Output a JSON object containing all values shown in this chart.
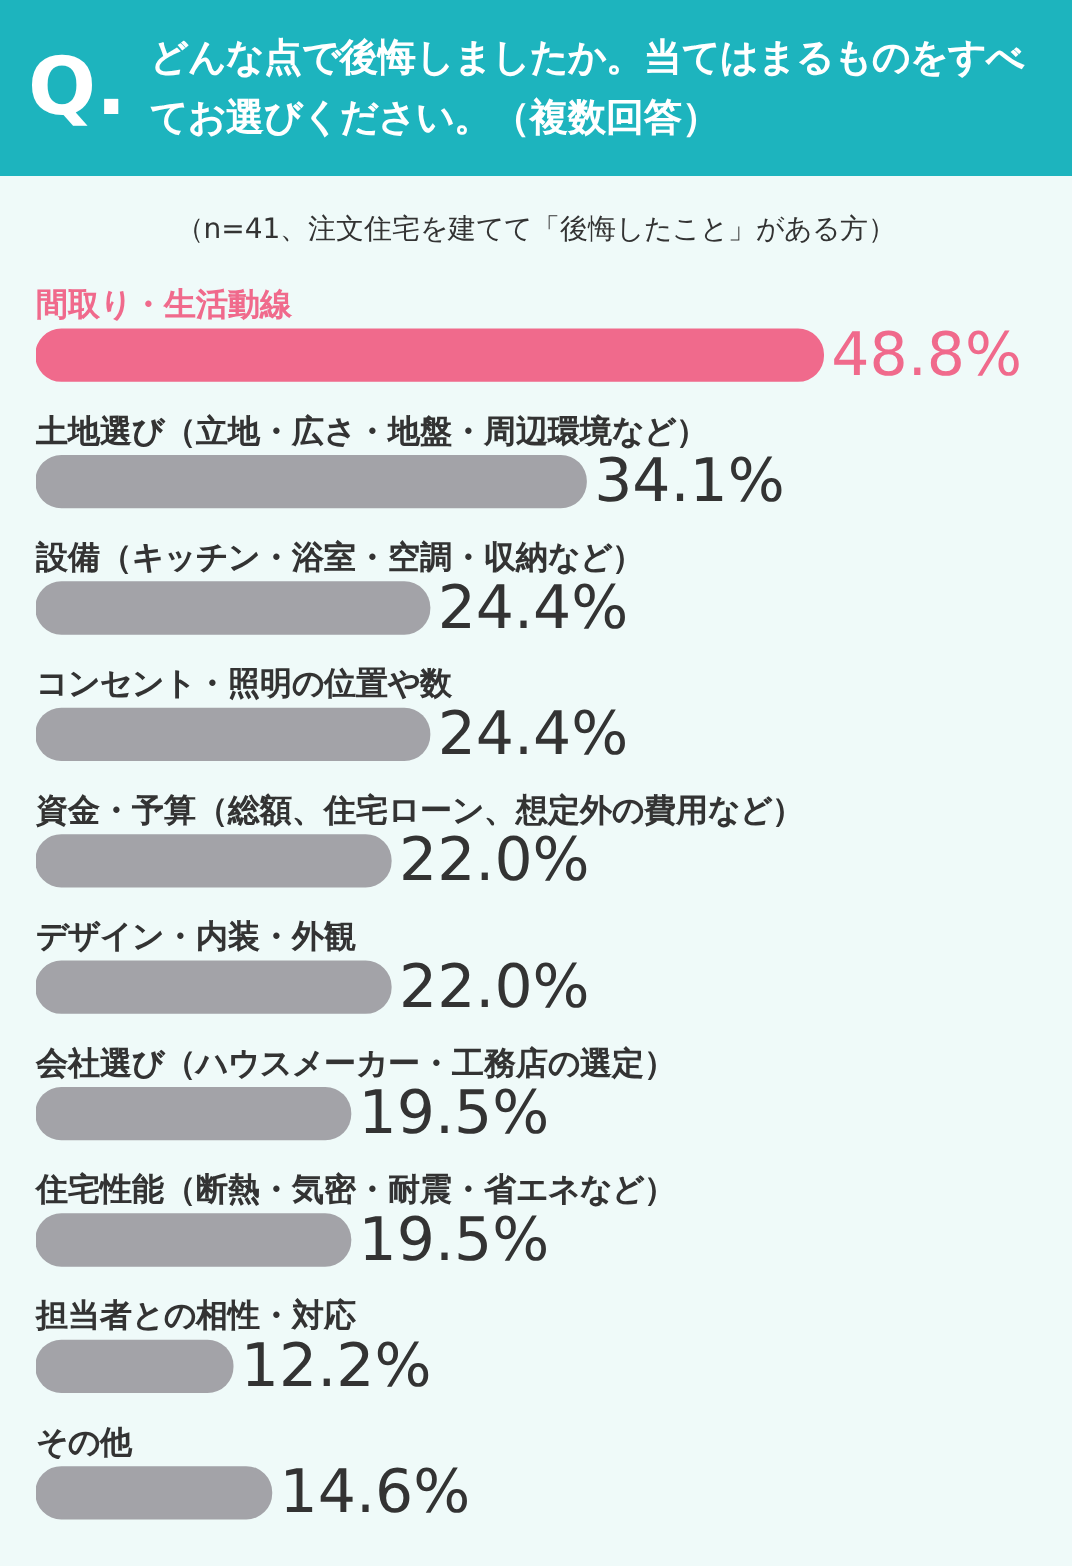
{
  "chart_data": {
    "type": "bar",
    "orientation": "horizontal",
    "title": "どんな点で後悔しましたか。当てはまるものをすべてお選びください。（複数回答）",
    "subtitle": "（n=41、注文住宅を建てて「後悔したこと」がある方）",
    "annotations": [
      "Q."
    ],
    "categories": [
      "間取り・生活動線",
      "土地選び（立地・広さ・地盤・周辺環境など）",
      "設備（キッチン・浴室・空調・収納など）",
      "コンセント・照明の位置や数",
      "資金・予算（総額、住宅ローン、想定外の費用など）",
      "デザイン・内装・外観",
      "会社選び（ハウスメーカー・工務店の選定）",
      "住宅性能（断熱・気密・耐震・省エネなど）",
      "担当者との相性・対応",
      "その他"
    ],
    "values": [
      48.8,
      34.1,
      24.4,
      24.4,
      22.0,
      22.0,
      19.5,
      19.5,
      12.2,
      14.6
    ],
    "colors": [
      "#f06a8c",
      "#a3a3a8",
      "#a3a3a8",
      "#a3a3a8",
      "#a3a3a8",
      "#a3a3a8",
      "#a3a3a8",
      "#a3a3a8",
      "#a3a3a8",
      "#a3a3a8"
    ],
    "value_labels": [
      "48.8%",
      "34.1%",
      "24.4%",
      "24.4%",
      "22.0%",
      "22.0%",
      "19.5%",
      "19.5%",
      "12.2%",
      "14.6%"
    ],
    "legend": false
  }
}
